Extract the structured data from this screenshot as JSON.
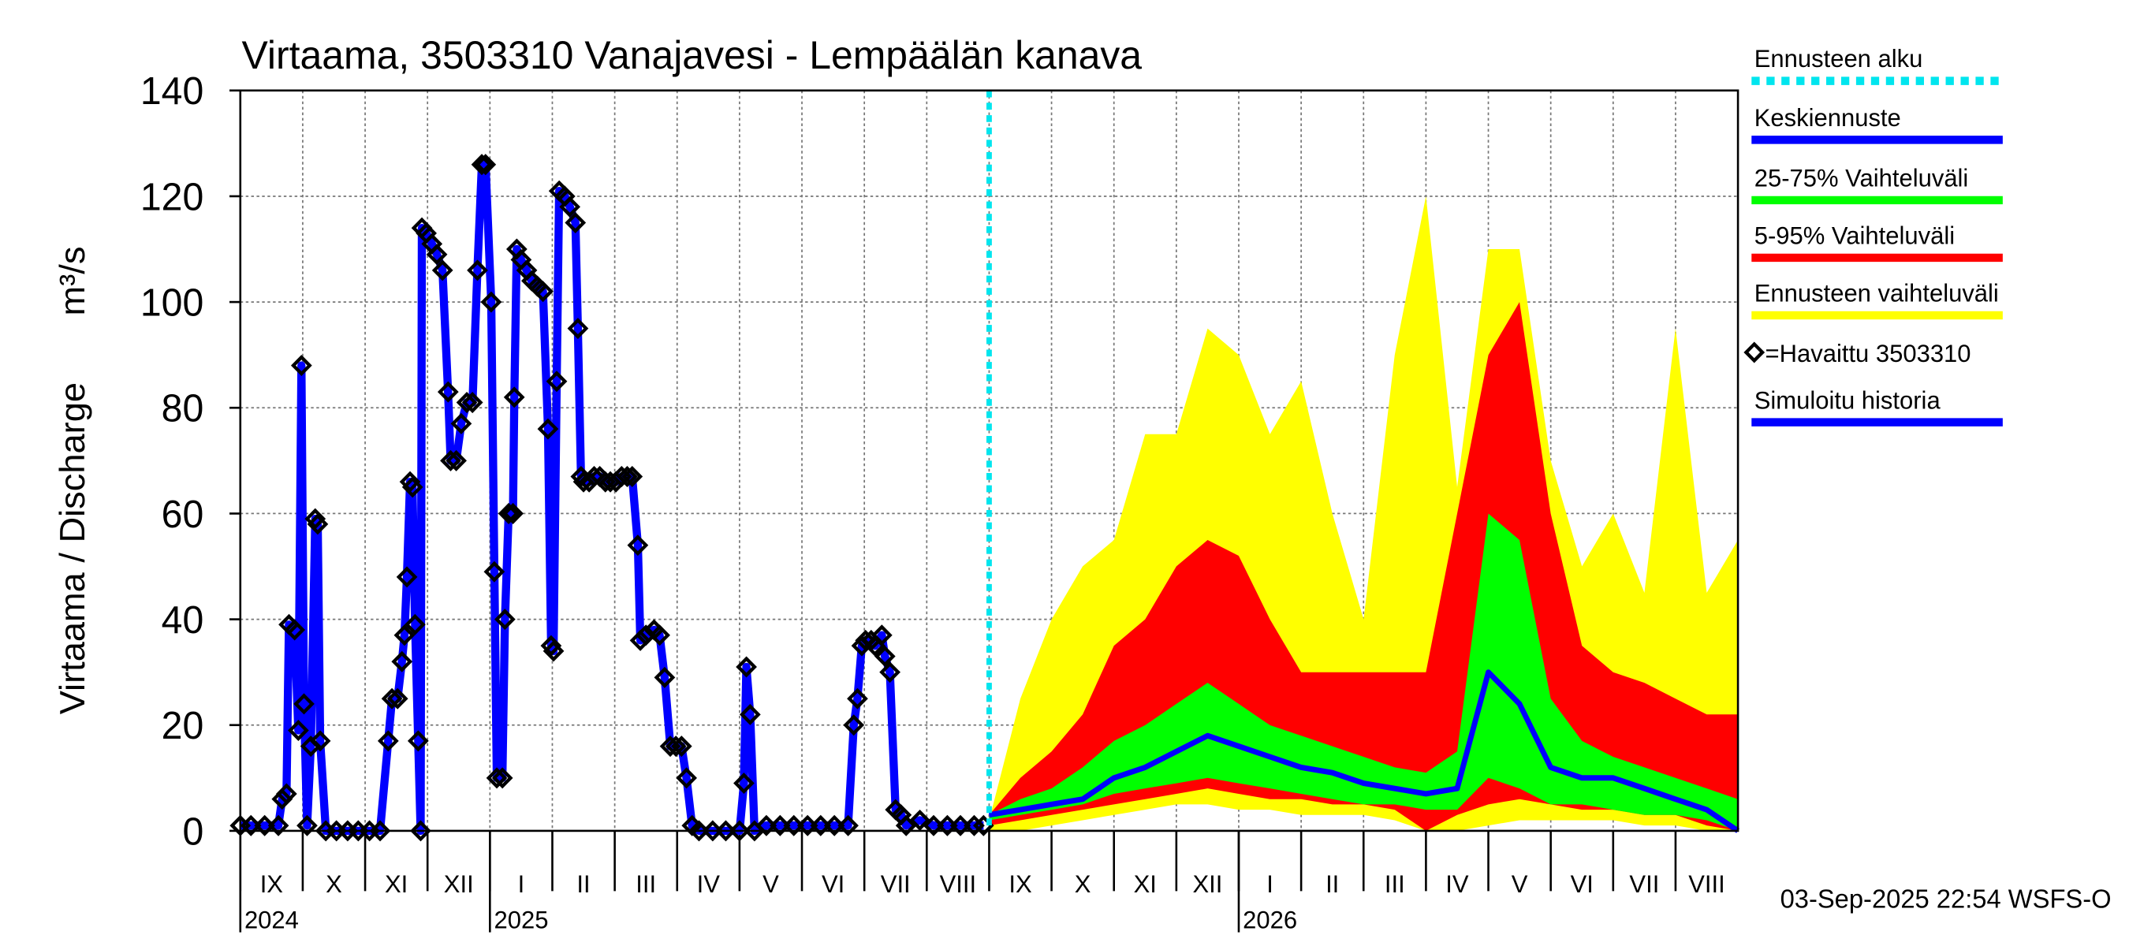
{
  "chart_data": {
    "type": "hydrograph",
    "title": "Virtaama, 3503310 Vanajavesi - Lempäälän kanava",
    "y_label": "Virtaama / Discharge",
    "y_unit": "m³/s",
    "footer": "03-Sep-2025 22:54 WSFS-O",
    "xlim": [
      0,
      24
    ],
    "ylim": [
      0,
      140
    ],
    "yticks": [
      0,
      20,
      40,
      60,
      80,
      100,
      120,
      140
    ],
    "grid": true,
    "xticks": [
      {
        "value": 0,
        "label": "IX"
      },
      {
        "value": 1,
        "label": "X"
      },
      {
        "value": 2,
        "label": "XI"
      },
      {
        "value": 3,
        "label": "XII"
      },
      {
        "value": 4,
        "label": "I"
      },
      {
        "value": 5,
        "label": "II"
      },
      {
        "value": 6,
        "label": "III"
      },
      {
        "value": 7,
        "label": "IV"
      },
      {
        "value": 8,
        "label": "V"
      },
      {
        "value": 9,
        "label": "VI"
      },
      {
        "value": 10,
        "label": "VII"
      },
      {
        "value": 11,
        "label": "VIII"
      },
      {
        "value": 12,
        "label": "IX"
      },
      {
        "value": 13,
        "label": "X"
      },
      {
        "value": 14,
        "label": "XI"
      },
      {
        "value": 15,
        "label": "XII"
      },
      {
        "value": 16,
        "label": "I"
      },
      {
        "value": 17,
        "label": "II"
      },
      {
        "value": 18,
        "label": "III"
      },
      {
        "value": 19,
        "label": "IV"
      },
      {
        "value": 20,
        "label": "V"
      },
      {
        "value": 21,
        "label": "VI"
      },
      {
        "value": 22,
        "label": "VII"
      },
      {
        "value": 23,
        "label": "VIII"
      }
    ],
    "years": [
      {
        "value": 0,
        "label": "2024"
      },
      {
        "value": 4,
        "label": "2025"
      },
      {
        "value": 16,
        "label": "2026"
      }
    ],
    "forecast_start": {
      "name": "Ennusteen alku",
      "x": 12,
      "color": "#00e5ee"
    },
    "forecast_x": [
      12,
      12.5,
      13,
      13.5,
      14,
      14.5,
      15,
      15.5,
      16,
      16.5,
      17,
      17.5,
      18,
      18.5,
      19,
      19.5,
      20,
      20.5,
      21,
      21.5,
      22,
      22.5,
      23,
      23.5,
      24
    ],
    "series": [
      {
        "name": "Keskiennuste",
        "kind": "line",
        "color": "#0000ff",
        "values": [
          3,
          4,
          5,
          6,
          10,
          12,
          15,
          18,
          16,
          14,
          12,
          11,
          9,
          8,
          7,
          8,
          30,
          24,
          12,
          10,
          10,
          8,
          6,
          4,
          0
        ]
      },
      {
        "name": "25-75% Vaihteluväli",
        "kind": "band",
        "color": "#00ff00",
        "low": [
          2,
          3,
          4,
          5,
          7,
          8,
          9,
          10,
          9,
          8,
          7,
          6,
          5,
          5,
          4,
          4,
          10,
          8,
          5,
          5,
          4,
          3,
          3,
          2,
          0
        ],
        "high": [
          3,
          6,
          8,
          12,
          17,
          20,
          24,
          28,
          24,
          20,
          18,
          16,
          14,
          12,
          11,
          15,
          60,
          55,
          25,
          17,
          14,
          12,
          10,
          8,
          6
        ]
      },
      {
        "name": "5-95% Vaihteluväli",
        "kind": "band",
        "color": "#ff0000",
        "low": [
          1,
          2,
          3,
          4,
          5,
          6,
          7,
          8,
          7,
          6,
          6,
          5,
          5,
          4,
          0,
          3,
          5,
          6,
          5,
          4,
          4,
          3,
          3,
          1,
          0
        ],
        "high": [
          3,
          10,
          15,
          22,
          35,
          40,
          50,
          55,
          52,
          40,
          30,
          30,
          30,
          30,
          30,
          60,
          90,
          100,
          60,
          35,
          30,
          28,
          25,
          22,
          22
        ]
      },
      {
        "name": "Ennusteen vaihteluväli",
        "kind": "band",
        "color": "#ffff00",
        "low": [
          0,
          0,
          1,
          2,
          3,
          4,
          5,
          5,
          4,
          4,
          3,
          3,
          3,
          2,
          0,
          0,
          1,
          2,
          2,
          2,
          2,
          1,
          1,
          0,
          0
        ],
        "high": [
          2,
          25,
          40,
          50,
          55,
          75,
          75,
          95,
          90,
          75,
          85,
          60,
          40,
          90,
          120,
          65,
          110,
          110,
          70,
          50,
          60,
          45,
          95,
          45,
          55
        ]
      },
      {
        "name": "=Havaittu 3503310",
        "kind": "markers",
        "color": "#000000",
        "x": [
          0,
          0.17,
          0.39,
          0.61,
          0.67,
          0.74,
          0.78,
          0.87,
          0.93,
          0.98,
          1.02,
          1.07,
          1.13,
          1.2,
          1.24,
          1.28,
          1.37,
          1.54,
          1.72,
          1.89,
          2.07,
          2.24,
          2.37,
          2.43,
          2.52,
          2.59,
          2.63,
          2.67,
          2.72,
          2.76,
          2.8,
          2.85,
          2.89,
          2.91,
          2.98,
          3.07,
          3.15,
          3.24,
          3.33,
          3.37,
          3.46,
          3.54,
          3.63,
          3.72,
          3.8,
          3.87,
          3.93,
          4.02,
          4.07,
          4.11,
          4.2,
          4.24,
          4.3,
          4.37,
          4.39,
          4.43,
          4.5,
          4.59,
          4.67,
          4.76,
          4.85,
          4.93,
          4.98,
          5.02,
          5.07,
          5.11,
          5.2,
          5.28,
          5.37,
          5.41,
          5.46,
          5.5,
          5.59,
          5.67,
          5.76,
          5.85,
          5.93,
          6.02,
          6.11,
          6.2,
          6.28,
          6.37,
          6.41,
          6.5,
          6.63,
          6.72,
          6.8,
          6.89,
          6.98,
          7.07,
          7.15,
          7.24,
          7.35,
          7.57,
          7.78,
          8,
          8.07,
          8.11,
          8.17,
          8.24,
          8.43,
          8.65,
          8.87,
          9.09,
          9.3,
          9.52,
          9.74,
          9.83,
          9.89,
          9.96,
          10.02,
          10.11,
          10.17,
          10.28,
          10.33,
          10.41,
          10.5,
          10.59,
          10.67,
          10.89,
          11.11,
          11.33,
          11.54,
          11.76,
          11.91
        ],
        "values": [
          1,
          1,
          1,
          1,
          6,
          7,
          39,
          38,
          19,
          88,
          24,
          1,
          16,
          59,
          58,
          17,
          0,
          0,
          0,
          0,
          0,
          0,
          17,
          25,
          25,
          32,
          37,
          48,
          66,
          65,
          39,
          17,
          0,
          114,
          113,
          111,
          109,
          106,
          83,
          70,
          70,
          77,
          81,
          81,
          106,
          126,
          126,
          100,
          49,
          10,
          10,
          40,
          60,
          60,
          82,
          110,
          108,
          106,
          104,
          103,
          102,
          76,
          35,
          34,
          85,
          121,
          120,
          118,
          115,
          95,
          67,
          66,
          66,
          67,
          67,
          66,
          66,
          66,
          67,
          67,
          67,
          54,
          36,
          37,
          38,
          37,
          29,
          16,
          16,
          16,
          10,
          1,
          0,
          0,
          0,
          0,
          9,
          31,
          22,
          0,
          1,
          1,
          1,
          1,
          1,
          1,
          1,
          20,
          25,
          35,
          36,
          36,
          35,
          37,
          33,
          30,
          4,
          3,
          1,
          2,
          1,
          1,
          1,
          1,
          1
        ]
      },
      {
        "name": "Simuloitu historia",
        "kind": "history",
        "color": "#0000ff",
        "x": [
          0,
          0.17,
          0.39,
          0.61,
          0.67,
          0.74,
          0.78,
          0.87,
          0.93,
          0.98,
          1.02,
          1.07,
          1.13,
          1.2,
          1.24,
          1.28,
          1.37,
          1.54,
          1.72,
          1.89,
          2.07,
          2.24,
          2.37,
          2.43,
          2.52,
          2.59,
          2.63,
          2.67,
          2.72,
          2.76,
          2.8,
          2.85,
          2.89,
          2.91,
          2.98,
          3.07,
          3.15,
          3.24,
          3.33,
          3.37,
          3.46,
          3.54,
          3.63,
          3.72,
          3.8,
          3.87,
          3.93,
          4.02,
          4.07,
          4.11,
          4.2,
          4.24,
          4.3,
          4.37,
          4.39,
          4.43,
          4.5,
          4.59,
          4.67,
          4.76,
          4.85,
          4.93,
          4.98,
          5.02,
          5.07,
          5.11,
          5.2,
          5.28,
          5.37,
          5.41,
          5.46,
          5.5,
          5.59,
          5.67,
          5.76,
          5.85,
          5.93,
          6.02,
          6.11,
          6.2,
          6.28,
          6.37,
          6.41,
          6.5,
          6.63,
          6.72,
          6.8,
          6.89,
          6.98,
          7.07,
          7.15,
          7.24,
          7.35,
          7.57,
          7.78,
          8,
          8.07,
          8.11,
          8.17,
          8.24,
          8.43,
          8.65,
          8.87,
          9.09,
          9.3,
          9.52,
          9.74,
          9.83,
          9.89,
          9.96,
          10.02,
          10.11,
          10.17,
          10.28,
          10.33,
          10.41,
          10.5,
          10.59,
          10.67,
          10.89,
          11.11,
          11.33,
          11.54,
          11.76,
          11.91
        ],
        "values": [
          1,
          1,
          1,
          1,
          6,
          7,
          39,
          38,
          19,
          88,
          24,
          1,
          16,
          59,
          58,
          17,
          0,
          0,
          0,
          0,
          0,
          0,
          17,
          25,
          25,
          32,
          37,
          48,
          66,
          65,
          39,
          17,
          0,
          114,
          113,
          111,
          109,
          106,
          83,
          70,
          70,
          77,
          81,
          81,
          106,
          126,
          126,
          100,
          49,
          10,
          10,
          40,
          60,
          60,
          82,
          110,
          108,
          106,
          104,
          103,
          102,
          76,
          35,
          34,
          85,
          121,
          120,
          118,
          115,
          95,
          67,
          66,
          66,
          67,
          67,
          66,
          66,
          66,
          67,
          67,
          67,
          54,
          36,
          37,
          38,
          37,
          29,
          16,
          16,
          16,
          10,
          1,
          0,
          0,
          0,
          0,
          9,
          31,
          22,
          0,
          1,
          1,
          1,
          1,
          1,
          1,
          1,
          20,
          25,
          35,
          36,
          36,
          35,
          37,
          33,
          30,
          4,
          3,
          1,
          2,
          1,
          1,
          1,
          1,
          1
        ]
      }
    ]
  }
}
